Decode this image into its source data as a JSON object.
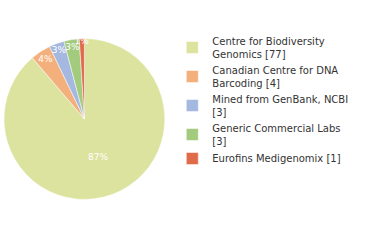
{
  "chart_data": {
    "type": "pie",
    "categories": [
      "Centre for Biodiversity Genomics [77]",
      "Canadian Centre for DNA Barcoding [4]",
      "Mined from GenBank, NCBI [3]",
      "Generic Commercial Labs [3]",
      "Eurofins Medigenomix [1]"
    ],
    "values": [
      87,
      4,
      3,
      3,
      1
    ],
    "value_labels": [
      "87%",
      "4%",
      "3%",
      "3%",
      "1%"
    ],
    "colors": [
      "#dce39f",
      "#f4b07c",
      "#a4b8e0",
      "#a3cb7e",
      "#e06b4a"
    ],
    "data_labels": true,
    "legend": "upper right"
  }
}
